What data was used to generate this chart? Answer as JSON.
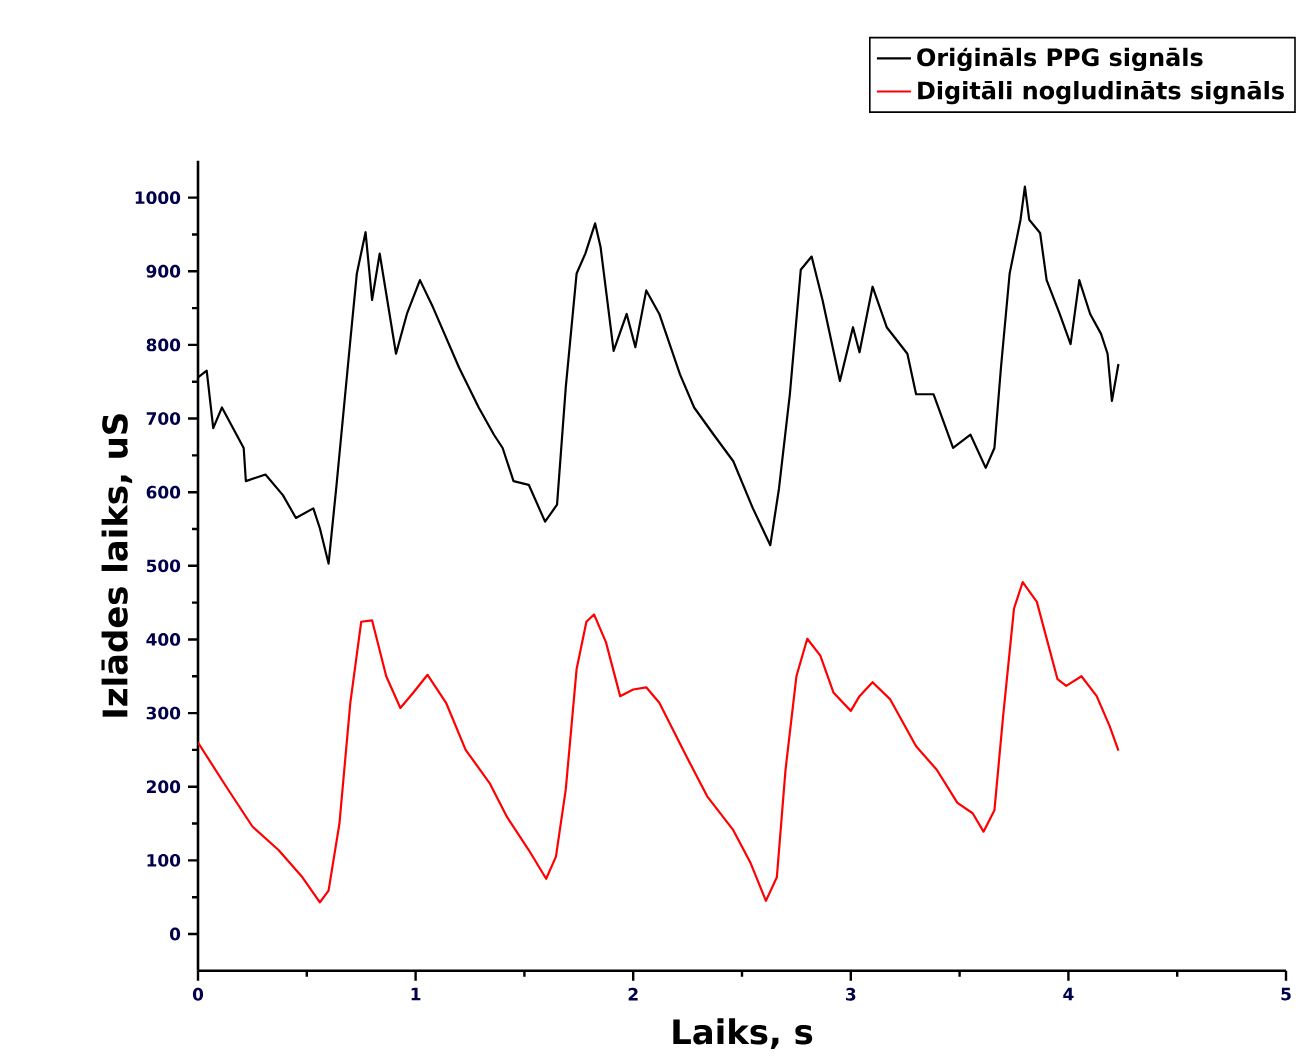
{
  "chart_data": {
    "type": "line",
    "xlabel": "Laiks, s",
    "ylabel": "Izlādes laiks, uS",
    "xlim": [
      0,
      5
    ],
    "ylim": [
      -50,
      1050
    ],
    "xticks": [
      0,
      1,
      2,
      3,
      4,
      5
    ],
    "yticks": [
      0,
      100,
      200,
      300,
      400,
      500,
      600,
      700,
      800,
      900,
      1000
    ],
    "grid": false,
    "legend": "top right",
    "marker": "none",
    "line_style": "solid",
    "series": [
      {
        "name": "Oriģināls PPG signāls",
        "color": "#000000",
        "x": [
          0,
          0.04,
          0.07,
          0.11,
          0.21,
          0.22,
          0.31,
          0.39,
          0.45,
          0.53,
          0.56,
          0.6,
          0.635,
          0.7,
          0.73,
          0.77,
          0.8,
          0.835,
          0.91,
          0.96,
          1.02,
          1.08,
          1.2,
          1.29,
          1.36,
          1.4,
          1.45,
          1.52,
          1.595,
          1.65,
          1.69,
          1.74,
          1.78,
          1.825,
          1.85,
          1.91,
          1.97,
          2.01,
          2.06,
          2.12,
          2.215,
          2.28,
          2.37,
          2.46,
          2.55,
          2.63,
          2.67,
          2.72,
          2.77,
          2.82,
          2.87,
          2.95,
          3.01,
          3.04,
          3.1,
          3.165,
          3.26,
          3.3,
          3.38,
          3.47,
          3.55,
          3.62,
          3.66,
          3.69,
          3.73,
          3.78,
          3.8,
          3.82,
          3.87,
          3.9,
          3.96,
          4.01,
          4.05,
          4.1,
          4.15,
          4.18,
          4.2,
          4.23
        ],
        "values": [
          756,
          765,
          687,
          715,
          660,
          615,
          624,
          596,
          565,
          578,
          551,
          503,
          605,
          806,
          897,
          953,
          861,
          924,
          788,
          842,
          888,
          851,
          769,
          715,
          678,
          660,
          615,
          610,
          560,
          583,
          742,
          897,
          924,
          965,
          933,
          792,
          842,
          797,
          874,
          842,
          760,
          715,
          678,
          642,
          578,
          528,
          605,
          733,
          902,
          920,
          861,
          751,
          824,
          790,
          879,
          824,
          788,
          733,
          733,
          660,
          678,
          633,
          660,
          769,
          897,
          970,
          1015,
          970,
          952,
          888,
          842,
          801,
          888,
          842,
          815,
          788,
          724,
          774
        ]
      },
      {
        "name": "Digitāli nogludināts signāls",
        "color": "#ff0000",
        "x": [
          0,
          0.13,
          0.25,
          0.37,
          0.48,
          0.56,
          0.6,
          0.65,
          0.7,
          0.75,
          0.8,
          0.865,
          0.93,
          0.99,
          1.055,
          1.14,
          1.23,
          1.34,
          1.42,
          1.52,
          1.6,
          1.645,
          1.69,
          1.74,
          1.785,
          1.82,
          1.875,
          1.94,
          2.0,
          2.06,
          2.12,
          2.245,
          2.34,
          2.46,
          2.54,
          2.61,
          2.66,
          2.7,
          2.75,
          2.8,
          2.86,
          2.92,
          3.0,
          3.04,
          3.1,
          3.18,
          3.3,
          3.395,
          3.49,
          3.56,
          3.61,
          3.66,
          3.7,
          3.75,
          3.79,
          3.855,
          3.95,
          3.99,
          4.06,
          4.13,
          4.19,
          4.23
        ],
        "values": [
          260,
          200,
          146,
          114,
          77,
          43,
          59,
          150,
          314,
          424,
          426,
          350,
          307,
          328,
          352,
          314,
          250,
          205,
          159,
          114,
          75,
          105,
          196,
          360,
          424,
          434,
          396,
          323,
          332,
          335,
          314,
          241,
          187,
          141,
          96,
          45,
          77,
          223,
          350,
          401,
          378,
          328,
          303,
          323,
          342,
          319,
          255,
          223,
          178,
          164,
          139,
          168,
          296,
          442,
          478,
          451,
          346,
          337,
          350,
          323,
          282,
          249
        ]
      }
    ]
  }
}
